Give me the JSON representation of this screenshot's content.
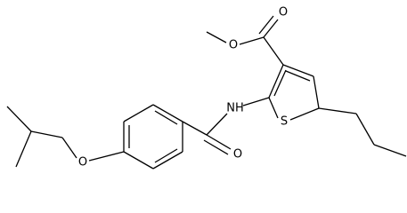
{
  "atoms": [
    {
      "label": "O"
    },
    {
      "label": "O"
    },
    {
      "label": "NH"
    },
    {
      "label": "S"
    },
    {
      "label": "O"
    },
    {
      "label": "O"
    }
  ]
}
